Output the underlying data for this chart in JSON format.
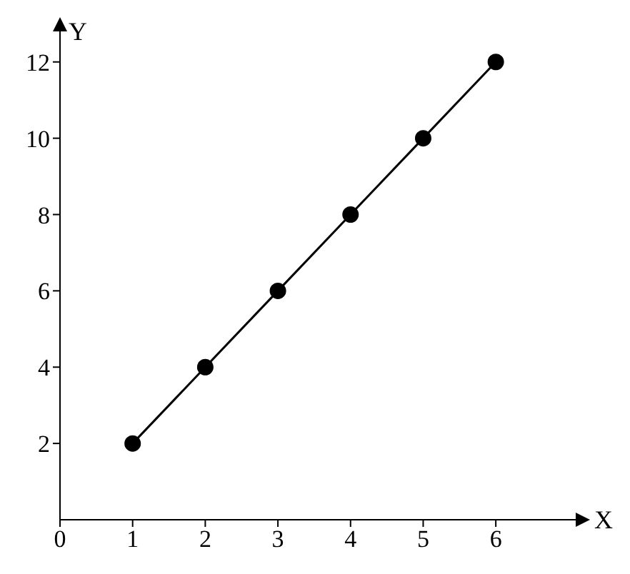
{
  "chart_data": {
    "type": "line",
    "xlabel": "X",
    "ylabel": "Y",
    "x": [
      1,
      2,
      3,
      4,
      5,
      6
    ],
    "series": [
      {
        "color": "#000000",
        "values": [
          2,
          4,
          6,
          8,
          10,
          12
        ]
      }
    ],
    "xlim": [
      0,
      7.1
    ],
    "xticks": [
      0,
      1,
      2,
      3,
      4,
      5,
      6
    ],
    "ylim": [
      0,
      12.8
    ],
    "yticks": [
      2,
      4,
      6,
      8,
      10,
      12
    ],
    "grid": false,
    "legend": false,
    "marker": "circle",
    "line_style": "solid"
  }
}
